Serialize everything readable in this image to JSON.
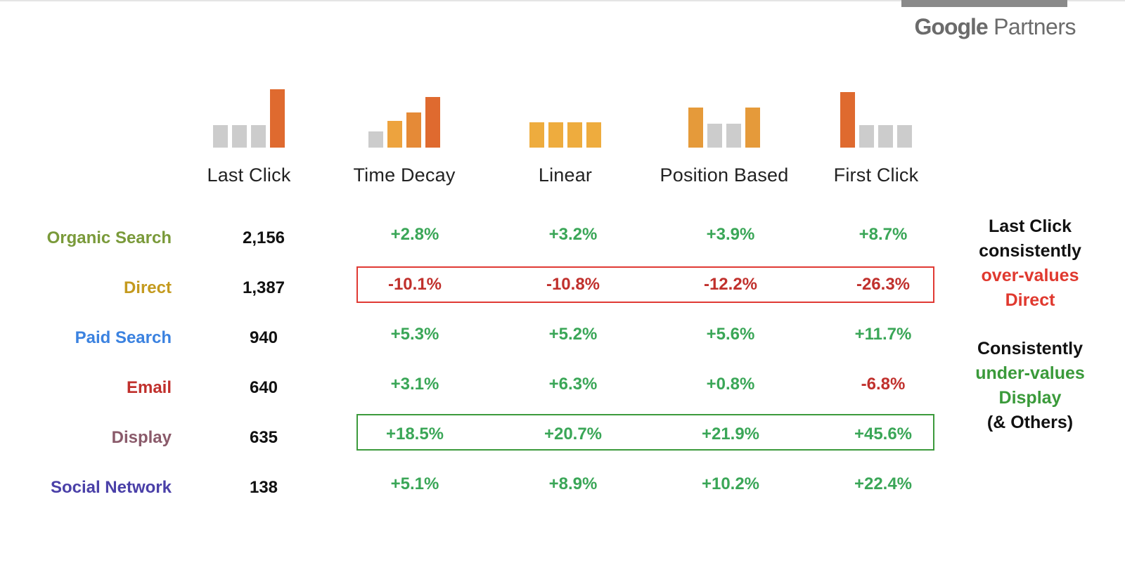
{
  "branding": {
    "partner_logo_google": "Google",
    "partner_logo_partners": "Partners"
  },
  "models": [
    {
      "label": "Last Click",
      "bars": [
        {
          "level": 0.36,
          "color": "#cccccc"
        },
        {
          "level": 0.36,
          "color": "#cccccc"
        },
        {
          "level": 0.36,
          "color": "#cccccc"
        },
        {
          "level": 0.92,
          "color": "#df6a2f"
        }
      ]
    },
    {
      "label": "Time Decay",
      "bars": [
        {
          "level": 0.25,
          "color": "#cccccc"
        },
        {
          "level": 0.42,
          "color": "#eda33e"
        },
        {
          "level": 0.55,
          "color": "#e58a37"
        },
        {
          "level": 0.8,
          "color": "#df6a2f"
        }
      ]
    },
    {
      "label": "Linear",
      "bars": [
        {
          "level": 0.4,
          "color": "#eeac3e"
        },
        {
          "level": 0.4,
          "color": "#eeac3e"
        },
        {
          "level": 0.4,
          "color": "#eeac3e"
        },
        {
          "level": 0.4,
          "color": "#eeac3e"
        }
      ]
    },
    {
      "label": "Position Based",
      "bars": [
        {
          "level": 0.63,
          "color": "#e59a3a"
        },
        {
          "level": 0.38,
          "color": "#cccccc"
        },
        {
          "level": 0.38,
          "color": "#cccccc"
        },
        {
          "level": 0.63,
          "color": "#e59a3a"
        }
      ]
    },
    {
      "label": "First Click",
      "bars": [
        {
          "level": 0.88,
          "color": "#df6a2f"
        },
        {
          "level": 0.36,
          "color": "#cccccc"
        },
        {
          "level": 0.36,
          "color": "#cccccc"
        },
        {
          "level": 0.36,
          "color": "#cccccc"
        }
      ]
    }
  ],
  "rows": [
    {
      "channel": "Organic Search",
      "color": "#7a9a3a",
      "last_click": "2,156",
      "values": [
        "+2.8%",
        "+3.2%",
        "+3.9%",
        "+8.7%"
      ]
    },
    {
      "channel": "Direct",
      "color": "#c49a1e",
      "last_click": "1,387",
      "values": [
        "-10.1%",
        "-10.8%",
        "-12.2%",
        "-26.3%"
      ]
    },
    {
      "channel": "Paid Search",
      "color": "#3b82e0",
      "last_click": "940",
      "values": [
        "+5.3%",
        "+5.2%",
        "+5.6%",
        "+11.7%"
      ]
    },
    {
      "channel": "Email",
      "color": "#c0302c",
      "last_click": "640",
      "values": [
        "+3.1%",
        "+6.3%",
        "+0.8%",
        "-6.8%"
      ]
    },
    {
      "channel": "Display",
      "color": "#8a5a6a",
      "last_click": "635",
      "values": [
        "+18.5%",
        "+20.7%",
        "+21.9%",
        "+45.6%"
      ]
    },
    {
      "channel": "Social Network",
      "color": "#4a40a8",
      "last_click": "138",
      "values": [
        "+5.1%",
        "+8.9%",
        "+10.2%",
        "+22.4%"
      ]
    }
  ],
  "notes": {
    "first": {
      "line1": "Last Click",
      "line2": "consistently",
      "line3": "over-values",
      "line4": "Direct"
    },
    "second": {
      "line1": "Consistently",
      "line2": "under-values",
      "line3": "Display",
      "line4": "(& Others)"
    }
  },
  "colors": {
    "positive": "#3aa657",
    "negative": "#c0302c",
    "note_red": "#e0392f",
    "note_green": "#3a9a3a"
  }
}
